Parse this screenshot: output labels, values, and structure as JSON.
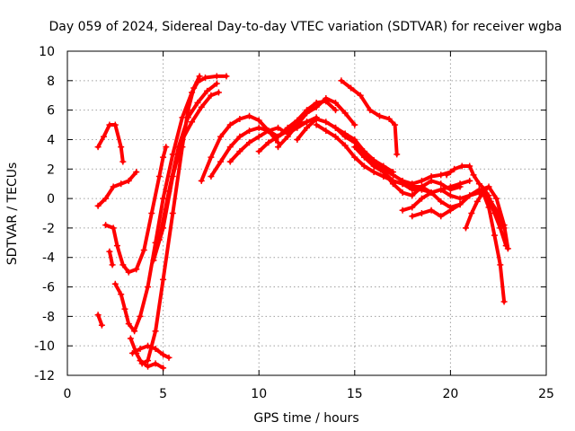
{
  "chart_data": {
    "type": "scatter",
    "title": "Day 059 of 2024, Sidereal Day-to-day VTEC variation (SDTVAR) for receiver wgba",
    "xlabel": "GPS time / hours",
    "ylabel": "SDTVAR / TECUs",
    "xlim": [
      0,
      25
    ],
    "ylim": [
      -12,
      10
    ],
    "xticks": [
      0,
      5,
      10,
      15,
      20,
      25
    ],
    "yticks": [
      -12,
      -10,
      -8,
      -6,
      -4,
      -2,
      0,
      2,
      4,
      6,
      8,
      10
    ],
    "grid": true,
    "marker": "+",
    "color": "#ff0000",
    "series": [
      {
        "name": "arc1",
        "x": [
          1.6,
          1.9,
          2.2,
          2.5,
          2.8,
          2.9
        ],
        "y": [
          3.5,
          4.2,
          5.0,
          5.0,
          3.5,
          2.5
        ]
      },
      {
        "name": "arc2",
        "x": [
          1.6,
          2.0,
          2.4,
          2.8,
          3.2,
          3.6
        ],
        "y": [
          -0.5,
          0.0,
          0.8,
          1.0,
          1.2,
          1.8
        ]
      },
      {
        "name": "arc3",
        "x": [
          2.0,
          2.4,
          2.6,
          2.9,
          3.2,
          3.6,
          4.0,
          4.4,
          4.8,
          5.0,
          5.15
        ],
        "y": [
          -1.8,
          -2.0,
          -3.2,
          -4.5,
          -5.0,
          -4.8,
          -3.5,
          -1.0,
          1.5,
          2.8,
          3.5
        ]
      },
      {
        "name": "arc4",
        "x": [
          2.5,
          2.8,
          3.0,
          3.2,
          3.5,
          3.8,
          4.2,
          4.6,
          5.0,
          5.5,
          6.0,
          6.5,
          6.8,
          7.2,
          7.8,
          8.3
        ],
        "y": [
          -5.8,
          -6.5,
          -7.5,
          -8.5,
          -9.0,
          -8.0,
          -6.0,
          -3.0,
          0.0,
          3.0,
          5.5,
          7.2,
          7.9,
          8.2,
          8.3,
          8.3
        ]
      },
      {
        "name": "arc5",
        "x": [
          3.3,
          3.6,
          3.9,
          4.2,
          4.6,
          5.0,
          5.5,
          6.0,
          6.3,
          6.6,
          6.9
        ],
        "y": [
          -9.5,
          -10.5,
          -11.2,
          -11.0,
          -9.0,
          -5.5,
          -1.0,
          3.5,
          6.0,
          7.5,
          8.3
        ]
      },
      {
        "name": "arc6",
        "x": [
          3.4,
          3.8,
          4.2,
          4.6,
          5.0,
          5.3
        ],
        "y": [
          -10.5,
          -10.2,
          -10.0,
          -10.2,
          -10.6,
          -10.8
        ]
      },
      {
        "name": "arc7",
        "x": [
          3.8,
          4.2,
          4.6,
          5.0
        ],
        "y": [
          -11.0,
          -11.4,
          -11.2,
          -11.5
        ]
      },
      {
        "name": "arc8",
        "x": [
          4.5,
          5.0,
          5.5,
          6.0,
          6.5,
          7.0,
          7.5,
          7.9
        ],
        "y": [
          -4.2,
          -2.0,
          1.5,
          4.0,
          5.2,
          6.2,
          7.0,
          7.2
        ]
      },
      {
        "name": "arc9",
        "x": [
          4.8,
          5.3,
          5.8,
          6.3,
          6.8,
          7.3,
          7.8
        ],
        "y": [
          -2.8,
          0.5,
          3.5,
          5.5,
          6.5,
          7.3,
          7.8
        ]
      },
      {
        "name": "arc10",
        "x": [
          7.0,
          7.5,
          8.0,
          8.5,
          9.0,
          9.5,
          10.0,
          10.5,
          11.0
        ],
        "y": [
          1.2,
          2.8,
          4.2,
          5.0,
          5.4,
          5.6,
          5.3,
          4.6,
          3.8
        ]
      },
      {
        "name": "arc11",
        "x": [
          7.5,
          8.0,
          8.5,
          9.0,
          9.5,
          10.0,
          10.5,
          11.0,
          11.5,
          12.0,
          12.5
        ],
        "y": [
          1.5,
          2.5,
          3.5,
          4.2,
          4.6,
          4.8,
          4.6,
          4.2,
          4.6,
          5.0,
          5.2
        ]
      },
      {
        "name": "arc12",
        "x": [
          8.5,
          9.0,
          9.5,
          10.0,
          10.5,
          11.0,
          11.5,
          12.0,
          12.5,
          13.0
        ],
        "y": [
          2.5,
          3.2,
          3.8,
          4.2,
          4.6,
          4.8,
          4.4,
          4.8,
          5.2,
          5.5
        ]
      },
      {
        "name": "arc13",
        "x": [
          10.0,
          10.5,
          11.0,
          11.5,
          12.0,
          12.5,
          13.0,
          13.5,
          14.0
        ],
        "y": [
          3.2,
          3.8,
          4.2,
          4.8,
          5.3,
          6.0,
          6.5,
          6.6,
          6.0
        ]
      },
      {
        "name": "arc14",
        "x": [
          11.0,
          11.5,
          12.0,
          12.5,
          13.0,
          13.5,
          14.0,
          14.5,
          15.0
        ],
        "y": [
          3.5,
          4.2,
          5.0,
          5.8,
          6.2,
          6.8,
          6.5,
          5.8,
          5.0
        ]
      },
      {
        "name": "arc15",
        "x": [
          12.0,
          12.5,
          13.0,
          13.5,
          14.0,
          14.5,
          15.0,
          15.5,
          16.0,
          16.5,
          17.0
        ],
        "y": [
          4.0,
          4.8,
          5.4,
          5.2,
          4.8,
          4.4,
          4.0,
          3.2,
          2.6,
          2.2,
          1.8
        ]
      },
      {
        "name": "arc16",
        "x": [
          13.0,
          13.5,
          14.0,
          14.5,
          15.0,
          15.5,
          16.0,
          16.5,
          17.0,
          17.5,
          18.0,
          18.5
        ],
        "y": [
          5.0,
          4.6,
          4.2,
          3.6,
          2.8,
          2.2,
          1.8,
          1.5,
          1.2,
          1.0,
          0.8,
          0.8
        ]
      },
      {
        "name": "arc17",
        "x": [
          14.3,
          14.8,
          15.3,
          15.8,
          16.3,
          16.8,
          17.1,
          17.2
        ],
        "y": [
          8.0,
          7.5,
          7.0,
          6.0,
          5.6,
          5.4,
          5.0,
          3.0
        ]
      },
      {
        "name": "arc18",
        "x": [
          14.0,
          14.5,
          15.0,
          15.5,
          16.0,
          16.5,
          17.0,
          17.5,
          18.0,
          18.5,
          19.0,
          19.5,
          20.0
        ],
        "y": [
          4.8,
          4.2,
          3.8,
          3.0,
          2.4,
          2.0,
          1.6,
          1.2,
          1.0,
          1.2,
          1.5,
          1.6,
          1.8
        ]
      },
      {
        "name": "arc19",
        "x": [
          15.0,
          15.5,
          16.0,
          16.5,
          17.0,
          17.5,
          18.0,
          18.5,
          19.0,
          19.5,
          20.0,
          20.5,
          21.0
        ],
        "y": [
          3.5,
          2.8,
          2.2,
          1.8,
          1.2,
          1.0,
          0.6,
          0.6,
          0.4,
          0.6,
          0.8,
          1.0,
          1.2
        ]
      },
      {
        "name": "arc20",
        "x": [
          16.0,
          16.5,
          17.0,
          17.5,
          18.0,
          18.5,
          19.0,
          19.5,
          20.0,
          20.5
        ],
        "y": [
          2.5,
          1.8,
          1.0,
          0.4,
          0.2,
          0.8,
          1.2,
          1.0,
          0.6,
          0.8
        ]
      },
      {
        "name": "arc21",
        "x": [
          17.5,
          18.0,
          18.5,
          19.0,
          19.5,
          20.0,
          20.5,
          21.0,
          21.5
        ],
        "y": [
          -0.8,
          -0.6,
          0.0,
          0.4,
          0.6,
          0.2,
          0.0,
          0.2,
          0.4
        ]
      },
      {
        "name": "arc22",
        "x": [
          18.0,
          18.5,
          19.0,
          19.5,
          20.0,
          20.5,
          21.0,
          21.5,
          22.0
        ],
        "y": [
          -1.2,
          -1.0,
          -0.8,
          -1.2,
          -0.8,
          -0.4,
          0.2,
          0.6,
          0.2
        ]
      },
      {
        "name": "arc23",
        "x": [
          18.5,
          19.0,
          19.5,
          20.0,
          20.5,
          21.0,
          21.5,
          22.0,
          22.3,
          22.6,
          22.9
        ],
        "y": [
          0.8,
          0.4,
          -0.2,
          -0.6,
          -0.4,
          0.2,
          0.6,
          0.0,
          -1.0,
          -2.0,
          -3.2
        ]
      },
      {
        "name": "arc24",
        "x": [
          19.8,
          20.2,
          20.6,
          21.0,
          21.2,
          21.5,
          21.8,
          22.1,
          22.4,
          22.8
        ],
        "y": [
          1.6,
          2.0,
          2.2,
          2.2,
          1.6,
          1.0,
          0.6,
          -0.2,
          -0.8,
          -2.0
        ]
      },
      {
        "name": "arc25",
        "x": [
          20.8,
          21.1,
          21.4,
          21.7,
          22.0,
          22.3,
          22.6,
          22.8
        ],
        "y": [
          -2.0,
          -1.0,
          -0.2,
          0.4,
          -0.6,
          -2.5,
          -4.5,
          -7.0
        ]
      },
      {
        "name": "arc26",
        "x": [
          21.6,
          22.0,
          22.4,
          22.8,
          23.0
        ],
        "y": [
          0.6,
          0.8,
          0.0,
          -1.8,
          -3.4
        ]
      },
      {
        "name": "arc27",
        "x": [
          1.6,
          1.8
        ],
        "y": [
          -7.9,
          -8.6
        ]
      },
      {
        "name": "arc28",
        "x": [
          2.2,
          2.35
        ],
        "y": [
          -3.6,
          -4.5
        ]
      }
    ]
  }
}
